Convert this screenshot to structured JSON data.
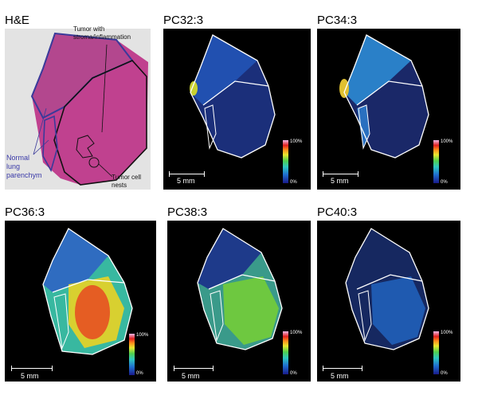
{
  "panels": [
    {
      "title": "H&E"
    },
    {
      "title": "PC32:3"
    },
    {
      "title": "PC34:3"
    },
    {
      "title": "PC36:3"
    },
    {
      "title": "PC38:3"
    },
    {
      "title": "PC40:3"
    }
  ],
  "annotations": {
    "tumor_stroma_line1": "Tumor with",
    "tumor_stroma_line2": "stroma/inflammation",
    "normal_line1": "Normal",
    "normal_line2": "lung",
    "normal_line3": "parenchym",
    "nests_line1": "Tumor cell",
    "nests_line2": "nests"
  },
  "scale": {
    "label": "5 mm"
  },
  "colorbar": {
    "max": "100%",
    "min": "0%"
  }
}
